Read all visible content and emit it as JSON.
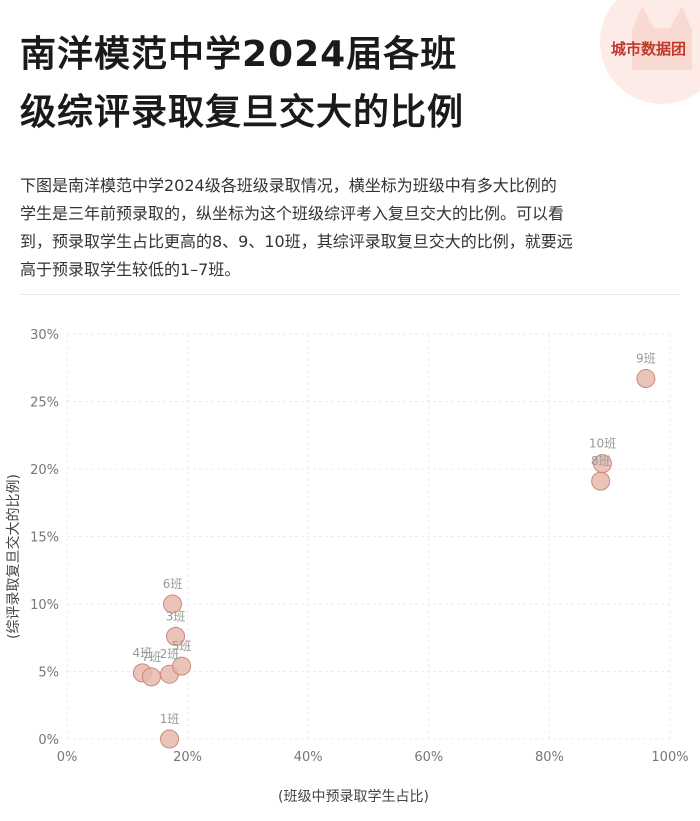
{
  "brand": {
    "name": "城市数据团"
  },
  "header": {
    "title_line1": "南洋模范中学2024届各班",
    "title_line2": "级综评录取复旦交大的比例"
  },
  "description": {
    "lines": [
      "下图是南洋模范中学2024级各班级录取情况，横坐标为班级中有多大比例的",
      "学生是三年前预录取的，纵坐标为这个班级综评考入复旦交大的比例。可以看",
      "到，预录取学生占比更高的8、9、10班，其综评录取复旦交大的比例，就要远",
      "高于预录取学生较低的1–7班。"
    ]
  },
  "colors": {
    "point_fill": "#e8b9ad",
    "point_stroke": "#c98a7d",
    "grid": "#ececec",
    "brand": "#c0392b"
  },
  "chart_data": {
    "type": "scatter",
    "xlabel": "(班级中预录取学生占比)",
    "ylabel": "(综评录取复旦交大的比例)",
    "xlim": [
      0,
      100
    ],
    "ylim": [
      0,
      30
    ],
    "xticks": [
      {
        "value": 0,
        "label": "0%"
      },
      {
        "value": 20,
        "label": "20%"
      },
      {
        "value": 40,
        "label": "40%"
      },
      {
        "value": 60,
        "label": "60%"
      },
      {
        "value": 80,
        "label": "80%"
      },
      {
        "value": 100,
        "label": "100%"
      }
    ],
    "yticks": [
      {
        "value": 0,
        "label": "0%"
      },
      {
        "value": 5,
        "label": "5%"
      },
      {
        "value": 10,
        "label": "10%"
      },
      {
        "value": 15,
        "label": "15%"
      },
      {
        "value": 20,
        "label": "20%"
      },
      {
        "value": 25,
        "label": "25%"
      },
      {
        "value": 30,
        "label": "30%"
      }
    ],
    "grid": true,
    "points": [
      {
        "label": "1班",
        "x": 17.0,
        "y": 0.0
      },
      {
        "label": "2班",
        "x": 17.0,
        "y": 4.8
      },
      {
        "label": "3班",
        "x": 18.0,
        "y": 7.6
      },
      {
        "label": "4班",
        "x": 12.5,
        "y": 4.9
      },
      {
        "label": "5班",
        "x": 19.0,
        "y": 5.4
      },
      {
        "label": "6班",
        "x": 17.5,
        "y": 10.0
      },
      {
        "label": "7班",
        "x": 14.0,
        "y": 4.6
      },
      {
        "label": "8班",
        "x": 88.5,
        "y": 19.1
      },
      {
        "label": "9班",
        "x": 96.0,
        "y": 26.7
      },
      {
        "label": "10班",
        "x": 88.8,
        "y": 20.4
      }
    ]
  }
}
